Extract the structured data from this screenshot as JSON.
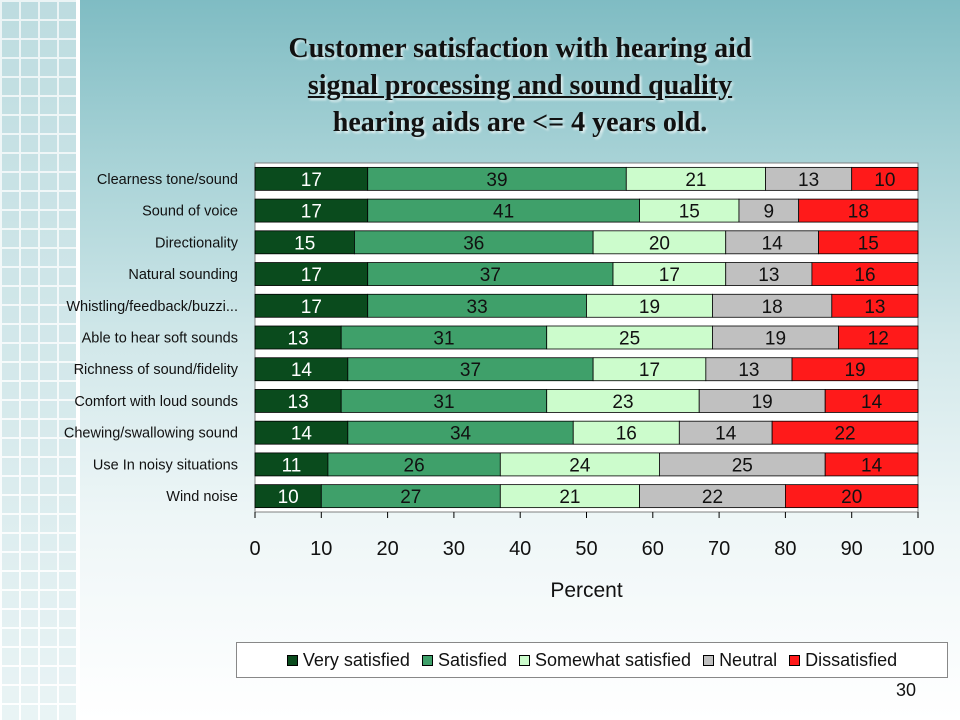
{
  "title": {
    "line1": "Customer satisfaction with hearing aid",
    "line2": "signal processing and sound quality",
    "line3": "hearing aids are <= 4 years old."
  },
  "page_number": "30",
  "chart_data": {
    "type": "bar",
    "orientation": "horizontal",
    "stacked": true,
    "categories": [
      "Clearness tone/sound",
      "Sound of voice",
      "Directionality",
      "Natural sounding",
      "Whistling/feedback/buzzi...",
      "Able to hear soft sounds",
      "Richness of sound/fidelity",
      "Comfort with loud sounds",
      "Chewing/swallowing sound",
      "Use In noisy situations",
      "Wind noise"
    ],
    "series": [
      {
        "name": "Very satisfied",
        "color": "#0a4b1d",
        "label_color": "#ffffff",
        "values": [
          17,
          17,
          15,
          17,
          17,
          13,
          14,
          13,
          14,
          11,
          10
        ]
      },
      {
        "name": "Satisfied",
        "color": "#3fa06a",
        "label_color": "#111111",
        "values": [
          39,
          41,
          36,
          37,
          33,
          31,
          37,
          31,
          34,
          26,
          27
        ]
      },
      {
        "name": "Somewhat satisfied",
        "color": "#ccfccc",
        "label_color": "#111111",
        "values": [
          21,
          15,
          20,
          17,
          19,
          25,
          17,
          23,
          16,
          24,
          21
        ]
      },
      {
        "name": "Neutral",
        "color": "#c0c0c0",
        "label_color": "#111111",
        "values": [
          13,
          9,
          14,
          13,
          18,
          19,
          13,
          19,
          14,
          25,
          22
        ]
      },
      {
        "name": "Dissatisfied",
        "color": "#ff1a1a",
        "label_color": "#111111",
        "values": [
          10,
          18,
          15,
          16,
          13,
          12,
          19,
          14,
          22,
          14,
          20
        ]
      }
    ],
    "xlabel": "Percent",
    "ylabel": "",
    "xlim": [
      0,
      100
    ],
    "xticks": [
      "0",
      "10",
      "20",
      "30",
      "40",
      "50",
      "60",
      "70",
      "80",
      "90",
      "100"
    ],
    "grid": false,
    "legend_position": "bottom"
  }
}
